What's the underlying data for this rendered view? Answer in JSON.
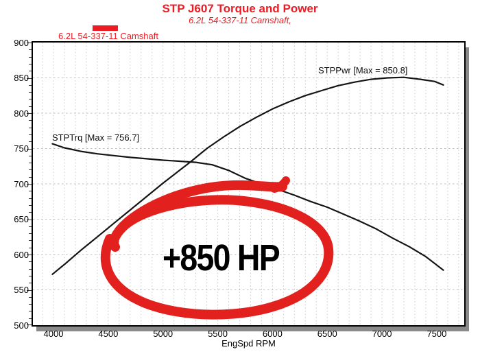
{
  "title": "STP J607 Torque and Power",
  "subtitle": "6.2L 54-337-11 Camshaft,",
  "legend": {
    "label": "6.2L 54-337-11 Camshaft",
    "swatch_color": "#ed1c24"
  },
  "annotation": {
    "text": "+850 HP",
    "text_color": "#000000",
    "circle_color": "#e2201d"
  },
  "colors": {
    "title_red": "#ee1b23",
    "curve_black": "#141414",
    "grid_gray": "#c6c6c6",
    "shadow_gray": "#8a8a8a"
  },
  "chart_data": {
    "type": "line",
    "title": "STP J607 Torque and Power",
    "subtitle": "6.2L 54-337-11 Camshaft,",
    "xlabel": "EngSpd RPM",
    "ylabel": "",
    "xlim": [
      3812,
      7751
    ],
    "ylim": [
      500,
      900
    ],
    "xticks": [
      4000,
      4500,
      5000,
      5500,
      6000,
      6500,
      7000,
      7500
    ],
    "yticks": [
      500,
      550,
      600,
      650,
      700,
      750,
      800,
      850,
      900
    ],
    "grid": {
      "x_minor_step": 100,
      "y_step": 50,
      "y_minor_tick_step": 10,
      "style": "dashed"
    },
    "legend_position": "top-left",
    "series": [
      {
        "name": "STPPwr",
        "label": "STPPwr [Max = 850.8]",
        "max": 850.8,
        "points": [
          [
            3990,
            572
          ],
          [
            4100,
            586
          ],
          [
            4250,
            606
          ],
          [
            4400,
            625
          ],
          [
            4550,
            644
          ],
          [
            4700,
            663
          ],
          [
            4850,
            682
          ],
          [
            5000,
            701
          ],
          [
            5150,
            719
          ],
          [
            5250,
            731
          ],
          [
            5400,
            750
          ],
          [
            5550,
            766
          ],
          [
            5700,
            781
          ],
          [
            5850,
            794
          ],
          [
            6000,
            806
          ],
          [
            6150,
            816
          ],
          [
            6300,
            825
          ],
          [
            6450,
            832
          ],
          [
            6600,
            839
          ],
          [
            6750,
            844
          ],
          [
            6900,
            848
          ],
          [
            7050,
            850
          ],
          [
            7200,
            850.8
          ],
          [
            7350,
            848
          ],
          [
            7480,
            845
          ],
          [
            7560,
            840
          ]
        ]
      },
      {
        "name": "STPTrq",
        "label": "STPTrq [Max = 756.7]",
        "max": 756.7,
        "points": [
          [
            3990,
            756.7
          ],
          [
            4100,
            751
          ],
          [
            4250,
            746
          ],
          [
            4400,
            742.5
          ],
          [
            4550,
            740
          ],
          [
            4700,
            737.5
          ],
          [
            4850,
            735.5
          ],
          [
            5000,
            733.5
          ],
          [
            5150,
            732
          ],
          [
            5300,
            730.5
          ],
          [
            5450,
            727
          ],
          [
            5600,
            719
          ],
          [
            5750,
            708
          ],
          [
            5900,
            700
          ],
          [
            6050,
            692
          ],
          [
            6200,
            684
          ],
          [
            6350,
            675
          ],
          [
            6500,
            667
          ],
          [
            6650,
            657
          ],
          [
            6800,
            647
          ],
          [
            6950,
            636
          ],
          [
            7100,
            623
          ],
          [
            7250,
            611
          ],
          [
            7400,
            597
          ],
          [
            7560,
            578
          ]
        ]
      }
    ]
  }
}
